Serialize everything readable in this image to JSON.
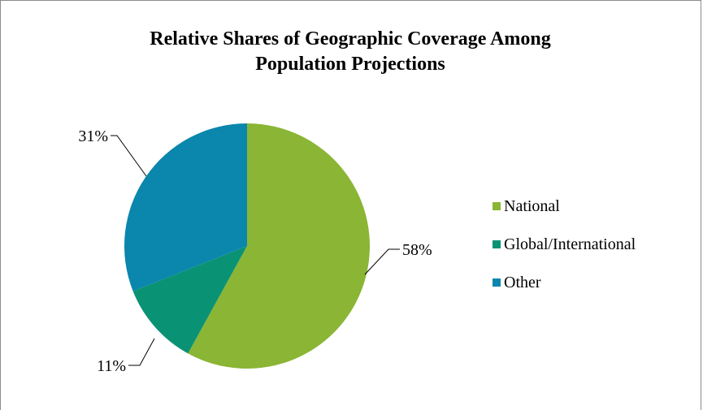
{
  "chart_data": {
    "type": "pie",
    "title_lines": [
      "Relative Shares of Geographic Coverage Among",
      "Population Projections"
    ],
    "slices": [
      {
        "label": "National",
        "value": 58,
        "display": "58%",
        "color": "#8ab535"
      },
      {
        "label": "Global/International",
        "value": 11,
        "display": "11%",
        "color": "#0a9274"
      },
      {
        "label": "Other",
        "value": 31,
        "display": "31%",
        "color": "#0b86ad"
      }
    ],
    "legend_position": "right"
  }
}
